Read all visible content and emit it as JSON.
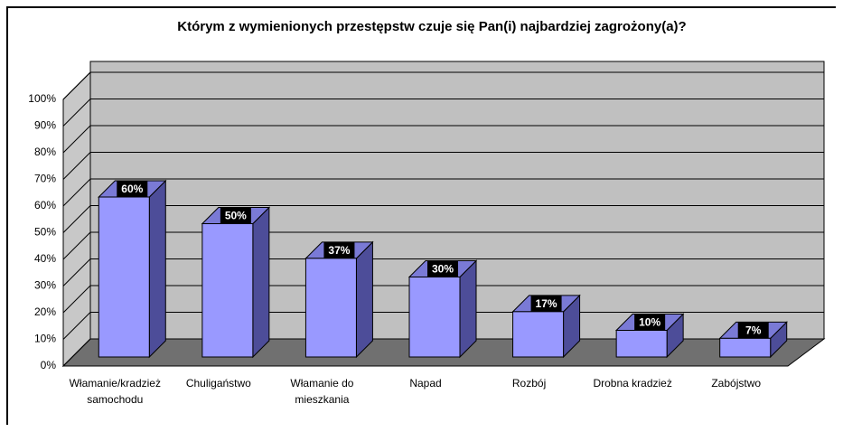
{
  "chart_data": {
    "type": "bar3d",
    "title": "Którym z wymienionych przestępstw czuje się Pan(i) najbardziej zagrożony(a)?",
    "categories": [
      "Włamanie/kradzież samochodu",
      "Chuligaństwo",
      "Włamanie do mieszkania",
      "Napad",
      "Rozbój",
      "Drobna kradzież",
      "Zabójstwo"
    ],
    "values": [
      60,
      50,
      37,
      30,
      17,
      10,
      7
    ],
    "value_labels": [
      "60%",
      "50%",
      "37%",
      "30%",
      "17%",
      "10%",
      "7%"
    ],
    "color": "#9999ff",
    "ylim": [
      0,
      100
    ],
    "yticks": [
      {
        "value": 0,
        "label": "0%"
      },
      {
        "value": 10,
        "label": "10%"
      },
      {
        "value": 20,
        "label": "20%"
      },
      {
        "value": 30,
        "label": "30%"
      },
      {
        "value": 40,
        "label": "40%"
      },
      {
        "value": 50,
        "label": "50%"
      },
      {
        "value": 60,
        "label": "60%"
      },
      {
        "value": 70,
        "label": "70%"
      },
      {
        "value": 80,
        "label": "80%"
      },
      {
        "value": 90,
        "label": "90%"
      },
      {
        "value": 100,
        "label": "100%"
      }
    ],
    "grid": true
  }
}
